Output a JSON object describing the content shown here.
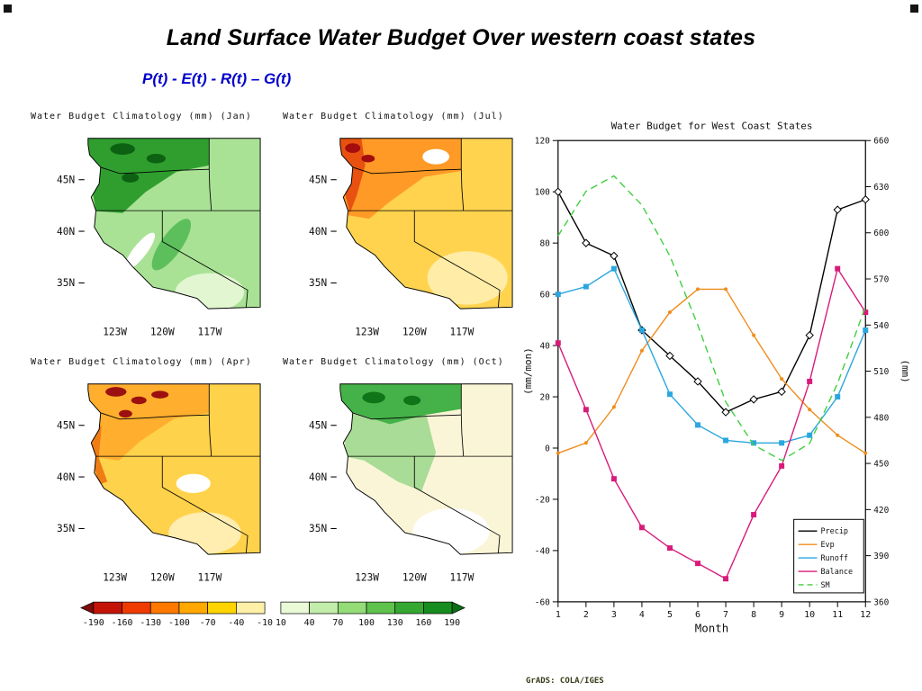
{
  "slide": {
    "title": "Land Surface Water Budget Over western coast states",
    "equation": "P(t) - E(t) - R(t) – G(t)",
    "credit": "GrADS: COLA/IGES"
  },
  "maps": {
    "panels": [
      {
        "id": "jan",
        "title": "Water Budget Climatology (mm) (Jan)"
      },
      {
        "id": "jul",
        "title": "Water Budget Climatology (mm) (Jul)"
      },
      {
        "id": "apr",
        "title": "Water Budget Climatology (mm) (Apr)"
      },
      {
        "id": "oct",
        "title": "Water Budget Climatology (mm) (Oct)"
      }
    ],
    "lat_labels": [
      "45N",
      "40N",
      "35N"
    ],
    "lon_labels": [
      "123W",
      "120W",
      "117W"
    ],
    "palettes": {
      "jan": {
        "base": "#a9e295",
        "zone1": "#2f9e2f",
        "zone2": "#5cbf5c",
        "spots": "#0c6212",
        "pale": "#e2f6d2"
      },
      "jul": {
        "base": "#ffd34e",
        "zone1": "#ff9a26",
        "zone2": "#e8510f",
        "spots": "#a30d0d",
        "pale": "#ffeca6"
      },
      "apr": {
        "base": "#ffd24b",
        "zone1": "#ffae2e",
        "zone2": "#f07c16",
        "spots": "#9c1010",
        "pale": "#ffeeb0"
      },
      "oct": {
        "base": "#fbf5d8",
        "zone1": "#44b248",
        "zone2": "#a9dc96",
        "spots": "#0f7518",
        "pale": "#ffffff"
      }
    },
    "colorbar": {
      "labels": [
        "-190",
        "-160",
        "-130",
        "-100",
        "-70",
        "-40",
        "-10",
        "10",
        "40",
        "70",
        "100",
        "130",
        "160",
        "190"
      ],
      "negative_colors": [
        "#7d0b0b",
        "#c41408",
        "#ef3b00",
        "#ff7800",
        "#ffa800",
        "#ffd400",
        "#fff0a8"
      ],
      "positive_colors": [
        "#eaf9d6",
        "#c2edaa",
        "#93dc78",
        "#5fc24c",
        "#35a832",
        "#178c1f",
        "#0a6e14"
      ]
    }
  },
  "chart_data": {
    "type": "line",
    "title": "Water Budget for West Coast States",
    "xlabel": "Month",
    "ylabel_left": "(mm/mon)",
    "ylabel_right": "(mm)",
    "x": [
      1,
      2,
      3,
      4,
      5,
      6,
      7,
      8,
      9,
      10,
      11,
      12
    ],
    "ylim_left": [
      -60,
      120
    ],
    "ylim_right": [
      360,
      660
    ],
    "yticks_left": [
      -60,
      -40,
      -20,
      0,
      20,
      40,
      60,
      80,
      100,
      120
    ],
    "yticks_right": [
      360,
      390,
      420,
      450,
      480,
      510,
      540,
      570,
      600,
      630,
      660
    ],
    "grid": false,
    "legend_position": "bottom-right",
    "series": [
      {
        "name": "Precip",
        "color": "#000000",
        "axis": "left",
        "style": "solid",
        "marker": "diamond-open",
        "values": [
          100,
          80,
          75,
          46,
          36,
          26,
          14,
          19,
          22,
          44,
          93,
          97
        ]
      },
      {
        "name": "Evp",
        "color": "#f08c1e",
        "axis": "left",
        "style": "solid",
        "marker": "circle-small",
        "values": [
          -2,
          2,
          16,
          38,
          53,
          62,
          62,
          44,
          27,
          15,
          5,
          -2
        ]
      },
      {
        "name": "Runoff",
        "color": "#2aa7df",
        "axis": "left",
        "style": "solid",
        "marker": "square-filled",
        "values": [
          60,
          63,
          70,
          46,
          21,
          9,
          3,
          2,
          2,
          5,
          20,
          46
        ]
      },
      {
        "name": "Balance",
        "color": "#d81b7a",
        "axis": "left",
        "style": "solid",
        "marker": "square-filled",
        "values": [
          41,
          15,
          -12,
          -31,
          -39,
          -45,
          -51,
          -26,
          -7,
          26,
          70,
          53
        ]
      },
      {
        "name": "SM",
        "color": "#3fcf3f",
        "axis": "right",
        "style": "dashed",
        "marker": "none",
        "values": [
          598,
          627,
          637,
          618,
          585,
          540,
          490,
          462,
          452,
          463,
          502,
          552
        ]
      }
    ]
  }
}
